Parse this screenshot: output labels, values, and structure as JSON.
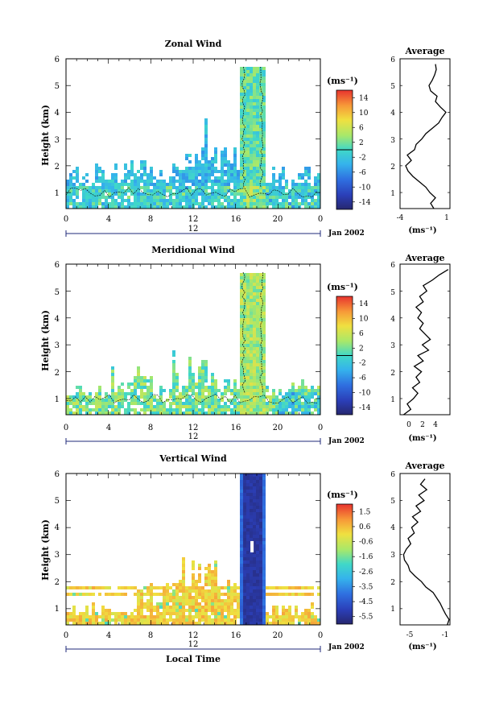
{
  "figure": {
    "x_axis_label": "Local Time",
    "date_label": "Jan 2002",
    "day_label": "12"
  },
  "chart_data": [
    {
      "type": "heatmap",
      "title": "Zonal Wind",
      "ylabel": "Height (km)",
      "ylim": [
        0.4,
        6
      ],
      "xlim": [
        0,
        24
      ],
      "x_ticks": [
        "0",
        "4",
        "8",
        "12",
        "16",
        "20",
        "0"
      ],
      "y_ticks": [
        "1",
        "2",
        "3",
        "4",
        "5",
        "6"
      ],
      "colorbar": {
        "unit": "(ms⁻¹)",
        "tick_labels": [
          "14",
          "10",
          "6",
          "2",
          "-2",
          "-6",
          "-10",
          "-14"
        ],
        "vmin": -16,
        "vmax": 16,
        "zero_line": 0
      },
      "average_profile": {
        "title": "Average",
        "xlabel": "(ms⁻¹)",
        "xlim": [
          -4.6,
          1.6
        ],
        "x_ticks": [
          "-4",
          "1"
        ],
        "heights": [
          0.4,
          0.6,
          0.8,
          1.0,
          1.2,
          1.4,
          1.6,
          1.8,
          2.0,
          2.2,
          2.4,
          2.6,
          2.8,
          3.0,
          3.2,
          3.4,
          3.6,
          3.8,
          4.0,
          4.2,
          4.4,
          4.6,
          4.8,
          5.0,
          5.2,
          5.4,
          5.6,
          5.8
        ],
        "values": [
          -0.4,
          -0.8,
          -0.2,
          -0.9,
          -1.4,
          -2.2,
          -3.0,
          -3.6,
          -3.9,
          -3.2,
          -3.7,
          -2.8,
          -2.6,
          -1.9,
          -1.4,
          -0.6,
          0.2,
          0.6,
          1.1,
          0.4,
          -0.2,
          0.0,
          -0.8,
          -1.0,
          -0.6,
          -0.3,
          -0.1,
          -0.2
        ]
      }
    },
    {
      "type": "heatmap",
      "title": "Meridional Wind",
      "ylabel": "Height (km)",
      "ylim": [
        0.4,
        6
      ],
      "xlim": [
        0,
        24
      ],
      "x_ticks": [
        "0",
        "4",
        "8",
        "12",
        "16",
        "20",
        "0"
      ],
      "y_ticks": [
        "1",
        "2",
        "3",
        "4",
        "5",
        "6"
      ],
      "colorbar": {
        "unit": "(ms⁻¹)",
        "tick_labels": [
          "14",
          "10",
          "6",
          "2",
          "-2",
          "-6",
          "-10",
          "-14"
        ],
        "vmin": -16,
        "vmax": 16,
        "zero_line": 0
      },
      "average_profile": {
        "title": "Average",
        "xlabel": "(ms⁻¹)",
        "xlim": [
          -0.6,
          5
        ],
        "x_ticks": [
          "0",
          "2",
          "4"
        ],
        "heights": [
          0.4,
          0.6,
          0.8,
          1.0,
          1.2,
          1.4,
          1.6,
          1.8,
          2.0,
          2.2,
          2.4,
          2.6,
          2.8,
          3.0,
          3.2,
          3.4,
          3.6,
          3.8,
          4.0,
          4.2,
          4.4,
          4.6,
          4.8,
          5.0,
          5.2,
          5.4,
          5.6,
          5.8
        ],
        "values": [
          -0.2,
          0.6,
          0.2,
          0.9,
          1.4,
          0.8,
          1.6,
          1.2,
          1.8,
          1.0,
          2.0,
          1.4,
          2.6,
          1.9,
          2.8,
          2.2,
          1.6,
          2.0,
          1.4,
          1.8,
          1.2,
          2.0,
          1.6,
          2.4,
          2.0,
          3.0,
          3.8,
          4.8
        ]
      }
    },
    {
      "type": "heatmap",
      "title": "Vertical Wind",
      "ylabel": "Height (km)",
      "ylim": [
        0.4,
        6
      ],
      "xlim": [
        0,
        24
      ],
      "x_ticks": [
        "0",
        "4",
        "8",
        "12",
        "16",
        "20",
        "0"
      ],
      "y_ticks": [
        "1",
        "2",
        "3",
        "4",
        "5",
        "6"
      ],
      "colorbar": {
        "unit": "(ms⁻¹)",
        "tick_labels": [
          "1.5",
          "0.6",
          "-0.6",
          "-1.6",
          "-2.6",
          "-3.5",
          "-4.5",
          "-5.5"
        ],
        "vmin": -6,
        "vmax": 2
      },
      "average_profile": {
        "title": "Average",
        "xlabel": "(ms⁻¹)",
        "xlim": [
          -6.3,
          -0.7
        ],
        "x_ticks": [
          "-5",
          "-1"
        ],
        "heights": [
          0.4,
          0.6,
          0.8,
          1.0,
          1.2,
          1.4,
          1.6,
          1.8,
          2.0,
          2.2,
          2.4,
          2.6,
          2.8,
          3.0,
          3.2,
          3.4,
          3.6,
          3.8,
          4.0,
          4.2,
          4.4,
          4.6,
          4.8,
          5.0,
          5.2,
          5.4,
          5.6,
          5.8
        ],
        "values": [
          -1.0,
          -0.8,
          -1.2,
          -1.5,
          -1.8,
          -2.2,
          -2.6,
          -3.4,
          -3.9,
          -4.6,
          -5.2,
          -5.4,
          -5.8,
          -5.9,
          -5.6,
          -5.1,
          -5.4,
          -4.7,
          -5.0,
          -4.3,
          -4.9,
          -4.0,
          -4.5,
          -3.6,
          -4.2,
          -3.3,
          -4.0,
          -3.5
        ]
      }
    }
  ]
}
